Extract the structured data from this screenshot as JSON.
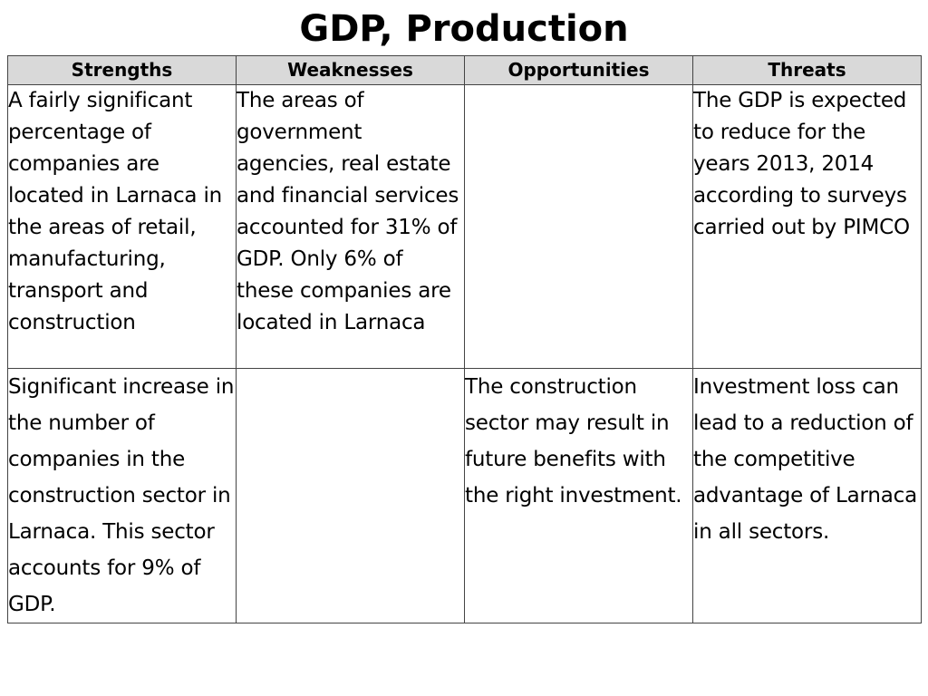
{
  "title": "GDP, Production",
  "table": {
    "headers": [
      "Strengths",
      "Weaknesses",
      "Opportunities",
      "Threats"
    ],
    "rows": [
      [
        "A fairly significant percentage of companies are located in Larnaca in the areas of retail, manufacturing, transport and construction",
        "The areas of government agencies, real estate and financial services accounted for 31% of GDP. Only 6% of these companies are located in Larnaca",
        "",
        "The GDP is expected to reduce for the years 2013, 2014 according to surveys carried out by PIMCO"
      ],
      [
        "Significant increase in the number of companies in the construction sector in Larnaca. This sector accounts for 9% of GDP.",
        "",
        "The construction sector may result in future benefits with the right investment.",
        "Investment loss can lead to a reduction of the competitive advantage of Larnaca in all sectors."
      ]
    ]
  }
}
